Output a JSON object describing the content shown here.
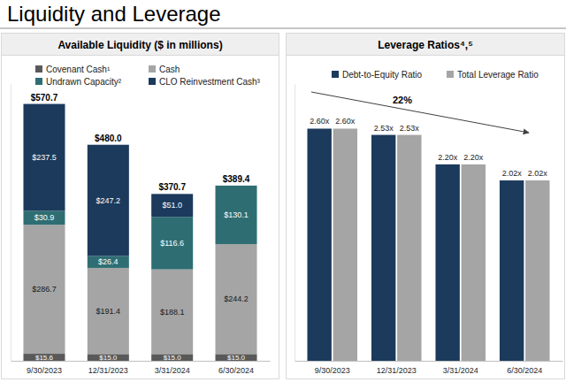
{
  "title": "Liquidity and Leverage",
  "chart_data": [
    {
      "type": "bar",
      "title": "Available Liquidity ($ in millions)",
      "stacked": true,
      "data_labels": true,
      "tick_labels": "x",
      "legend": "top",
      "categories": [
        "9/30/2023",
        "12/31/2023",
        "3/31/2024",
        "6/30/2024"
      ],
      "ylim": [
        0,
        615
      ],
      "yticks": [],
      "series": [
        {
          "name": "Covenant Cash¹",
          "color": "#595959",
          "values": [
            15.6,
            15.0,
            15.0,
            15.0
          ],
          "value_labels": [
            "$15.6",
            "$15.0",
            "$15.0",
            "$15.0"
          ]
        },
        {
          "name": "Cash",
          "color": "#a5a5a5",
          "values": [
            286.7,
            191.4,
            188.1,
            244.2
          ],
          "value_labels": [
            "$286.7",
            "$191.4",
            "$188.1",
            "$244.2"
          ]
        },
        {
          "name": "Undrawn Capacity²",
          "color": "#2e6e73",
          "values": [
            30.9,
            26.4,
            116.6,
            130.1
          ],
          "value_labels": [
            "$30.9",
            "$26.4",
            "$116.6",
            "$130.1"
          ]
        },
        {
          "name": "CLO Reinvestment Cash³",
          "color": "#1b3a5c",
          "values": [
            237.5,
            247.2,
            51.0,
            null
          ],
          "value_labels": [
            "$237.5",
            "$247.2",
            "$51.0",
            null
          ]
        }
      ],
      "totals": {
        "values": [
          570.7,
          480.0,
          370.7,
          389.4
        ],
        "labels": [
          "$570.7",
          "$480.0",
          "$370.7",
          "$389.4"
        ]
      }
    },
    {
      "type": "bar",
      "title": "Leverage Ratios⁴,⁵",
      "data_labels": true,
      "tick_labels": "x",
      "legend": "top",
      "categories": [
        "9/30/2023",
        "12/31/2023",
        "3/31/2024",
        "6/30/2024"
      ],
      "ylim": [
        0,
        3.1
      ],
      "yticks": [],
      "series": [
        {
          "name": "Debt-to-Equity Ratio",
          "color": "#1b3a5c",
          "values": [
            2.6,
            2.53,
            2.2,
            2.02
          ],
          "value_labels": [
            "2.60x",
            "2.53x",
            "2.20x",
            "2.02x"
          ]
        },
        {
          "name": "Total Leverage Ratio",
          "color": "#a5a5a5",
          "values": [
            2.6,
            2.53,
            2.2,
            2.02
          ],
          "value_labels": [
            "2.60x",
            "2.53x",
            "2.20x",
            "2.02x"
          ]
        }
      ],
      "annotation": "22%"
    }
  ]
}
